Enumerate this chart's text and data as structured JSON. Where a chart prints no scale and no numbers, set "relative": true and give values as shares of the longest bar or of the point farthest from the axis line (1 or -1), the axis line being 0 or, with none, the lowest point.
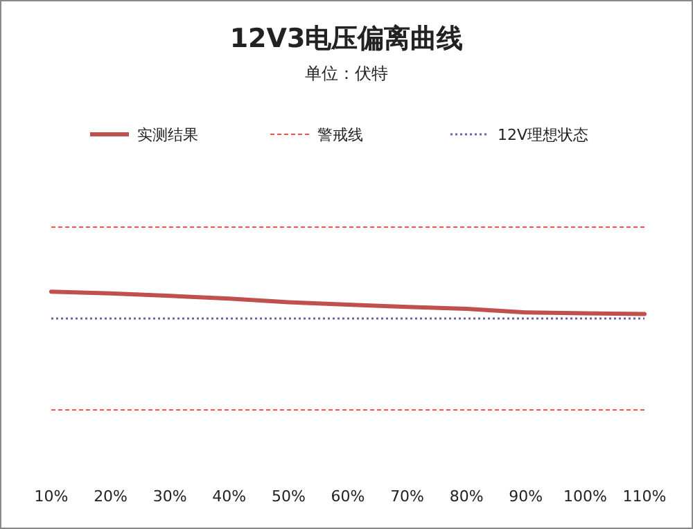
{
  "chart_data": {
    "type": "line",
    "title": "12V3电压偏离曲线",
    "subtitle": "单位：伏特",
    "relative": true,
    "legend": "top",
    "grid": false,
    "marker": "none",
    "categories": [
      "10%",
      "20%",
      "30%",
      "40%",
      "50%",
      "60%",
      "70%",
      "80%",
      "90%",
      "100%",
      "110%"
    ],
    "series": [
      {
        "name": "实测结果",
        "color": "#c0504d",
        "line_style": "solid",
        "values": [
          0.647,
          0.637,
          0.624,
          0.609,
          0.589,
          0.576,
          0.563,
          0.553,
          0.533,
          0.528,
          0.525
        ]
      },
      {
        "name": "警戒线",
        "color": "#ff5050",
        "line_style": "dashed",
        "values": [
          1,
          1,
          1,
          1,
          1,
          1,
          1,
          1,
          1,
          1,
          1
        ]
      },
      {
        "color": "#ff5050",
        "line_style": "dashed",
        "values": [
          0,
          0,
          0,
          0,
          0,
          0,
          0,
          0,
          0,
          0,
          0
        ]
      },
      {
        "name": "12V理想状态",
        "color": "#7060b0",
        "line_style": "dotted",
        "values": [
          0.5,
          0.5,
          0.5,
          0.5,
          0.5,
          0.5,
          0.5,
          0.5,
          0.5,
          0.5,
          0.5
        ]
      }
    ]
  }
}
